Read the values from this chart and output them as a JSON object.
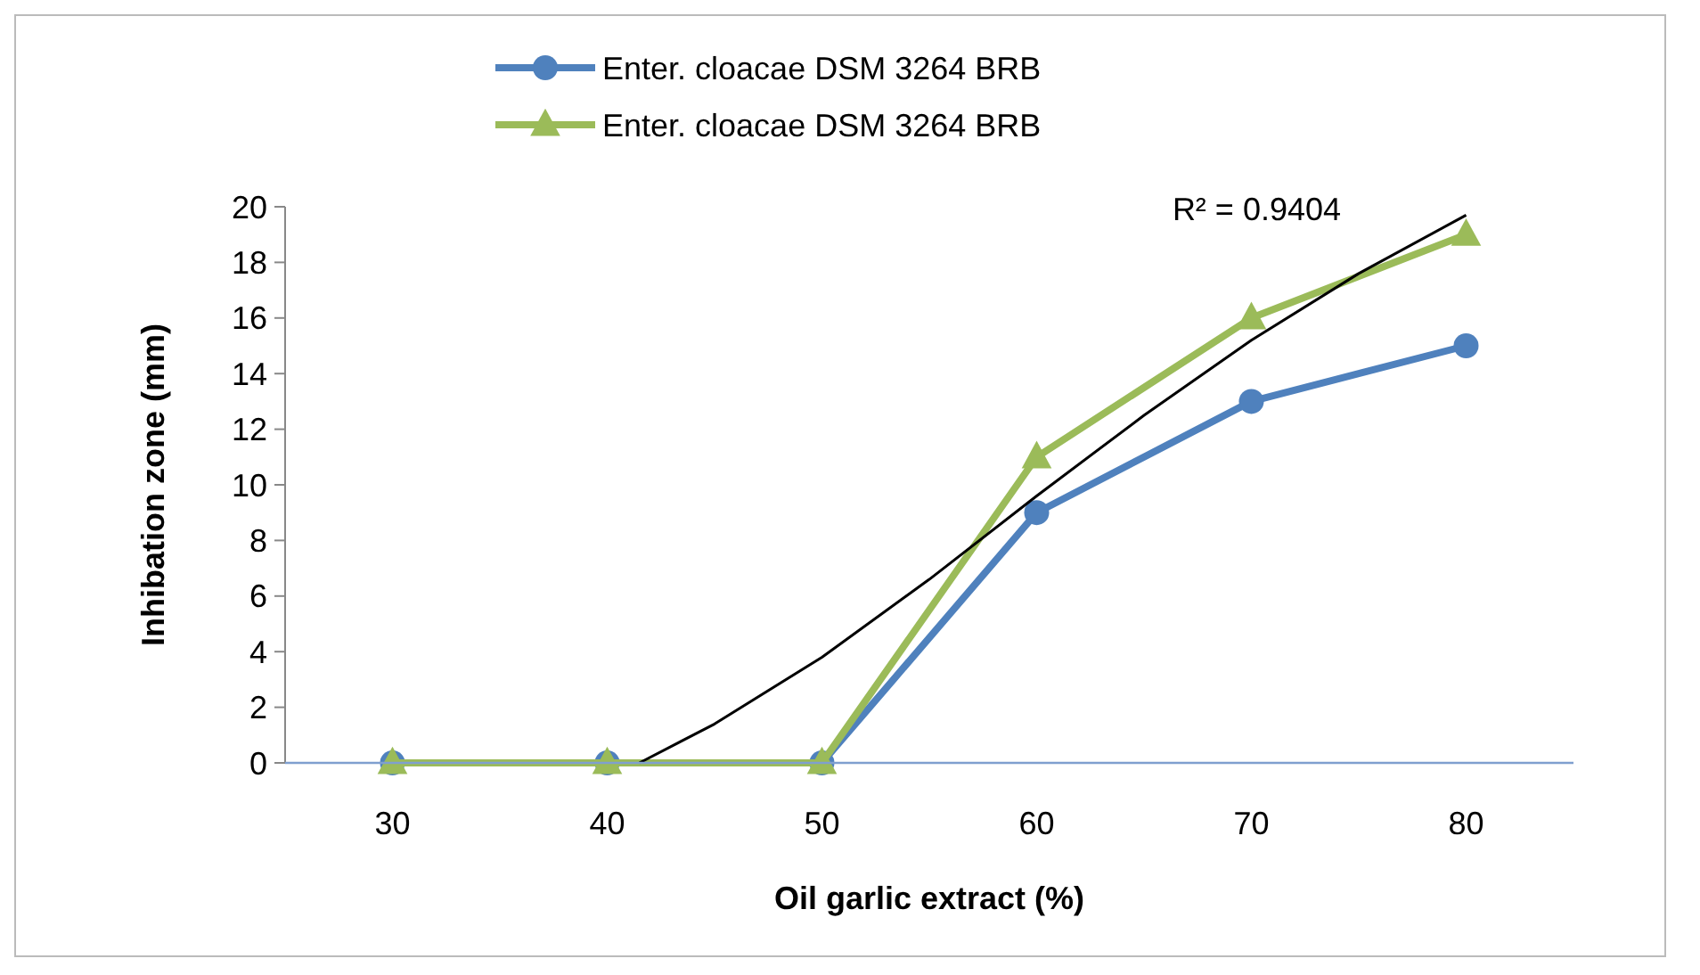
{
  "chart_data": {
    "type": "line",
    "xlabel": "Oil garlic extract (%)",
    "ylabel": "Inhibation zone (mm)",
    "xlim": [
      25,
      85
    ],
    "xticks": [
      30,
      40,
      50,
      60,
      70,
      80
    ],
    "ylim": [
      0,
      20
    ],
    "yticks": [
      0,
      2,
      4,
      6,
      8,
      10,
      12,
      14,
      16,
      18,
      20
    ],
    "grid": false,
    "legend": "top",
    "line_style": "solid",
    "series": [
      {
        "name": "Enter. cloacae DSM 3264 BRB",
        "color": "#4f81bd",
        "marker": "circle",
        "x": [
          30,
          40,
          50,
          60,
          70,
          80
        ],
        "values": [
          0,
          0,
          0,
          9,
          13,
          15
        ]
      },
      {
        "name": "Enter. cloacae DSM 3264 BRB",
        "color": "#9bbb59",
        "marker": "triangle",
        "x": [
          30,
          40,
          50,
          60,
          70,
          80
        ],
        "values": [
          0,
          0,
          0,
          11,
          16,
          19
        ]
      },
      {
        "color": "#000000",
        "marker": "none",
        "x": [
          41.5,
          45,
          50,
          55,
          60,
          65,
          70,
          75,
          80
        ],
        "values": [
          0,
          1.4,
          3.8,
          6.6,
          9.6,
          12.5,
          15.2,
          17.6,
          19.7
        ]
      }
    ],
    "annotations": [
      {
        "text": "R² = 0.9404",
        "x": 75,
        "y": 17.6
      }
    ]
  }
}
